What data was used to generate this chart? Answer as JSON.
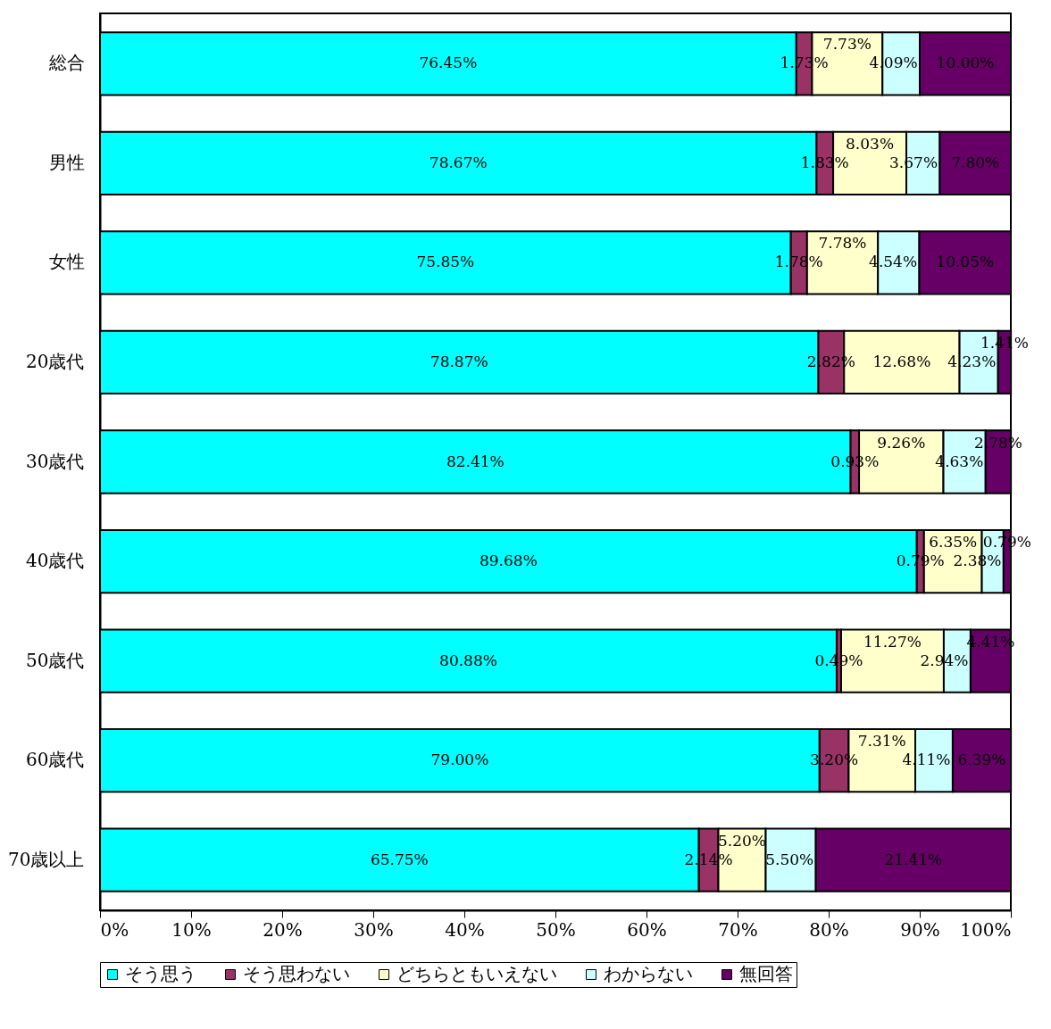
{
  "chart_data": {
    "type": "bar",
    "orientation": "horizontal",
    "stacked": true,
    "categories": [
      "総合",
      "男性",
      "女性",
      "20歳代",
      "30歳代",
      "40歳代",
      "50歳代",
      "60歳代",
      "70歳以上"
    ],
    "series": [
      {
        "name": "そう思う",
        "color": "#00ffff",
        "values": [
          76.45,
          78.67,
          75.85,
          78.87,
          82.41,
          89.68,
          80.88,
          79.0,
          65.75
        ],
        "value_labels": [
          "76.45%",
          "78.67%",
          "75.85%",
          "78.87%",
          "82.41%",
          "89.68%",
          "80.88%",
          "79.00%",
          "65.75%"
        ]
      },
      {
        "name": "そう思わない",
        "color": "#993366",
        "values": [
          1.73,
          1.83,
          1.78,
          2.82,
          0.93,
          0.79,
          0.49,
          3.2,
          2.14
        ],
        "value_labels": [
          "1.73%",
          "1.83%",
          "1.78%",
          "2.82%",
          "0.93%",
          "0.79%",
          "0.49%",
          "3.20%",
          "2.14%"
        ]
      },
      {
        "name": "どちらともいえない",
        "color": "#ffffcc",
        "values": [
          7.73,
          8.03,
          7.78,
          12.68,
          9.26,
          6.35,
          11.27,
          7.31,
          5.2
        ],
        "value_labels": [
          "7.73%",
          "8.03%",
          "7.78%",
          "12.68%",
          "9.26%",
          "6.35%",
          "11.27%",
          "7.31%",
          "5.20%"
        ]
      },
      {
        "name": "わからない",
        "color": "#ccffff",
        "values": [
          4.09,
          3.67,
          4.54,
          4.23,
          4.63,
          2.38,
          2.94,
          4.11,
          5.5
        ],
        "value_labels": [
          "4.09%",
          "3.67%",
          "4.54%",
          "4.23%",
          "4.63%",
          "2.38%",
          "2.94%",
          "4.11%",
          "5.50%"
        ]
      },
      {
        "name": "無回答",
        "color": "#660066",
        "values": [
          10.0,
          7.8,
          10.05,
          1.41,
          2.78,
          0.79,
          4.41,
          6.39,
          21.41
        ],
        "value_labels": [
          "10.00%",
          "7.80%",
          "10.05%",
          "1.41%",
          "2.78%",
          "0.79%",
          "4.41%",
          "6.39%",
          "21.41%"
        ]
      }
    ],
    "xlim": [
      0,
      100
    ],
    "xticks": [
      {
        "value": 0,
        "label": "0%"
      },
      {
        "value": 10,
        "label": "10%"
      },
      {
        "value": 20,
        "label": "20%"
      },
      {
        "value": 30,
        "label": "30%"
      },
      {
        "value": 40,
        "label": "40%"
      },
      {
        "value": 50,
        "label": "50%"
      },
      {
        "value": 60,
        "label": "60%"
      },
      {
        "value": 70,
        "label": "70%"
      },
      {
        "value": 80,
        "label": "80%"
      },
      {
        "value": 90,
        "label": "90%"
      },
      {
        "value": 100,
        "label": "100%"
      }
    ],
    "grid": false,
    "legend": "bottom"
  }
}
